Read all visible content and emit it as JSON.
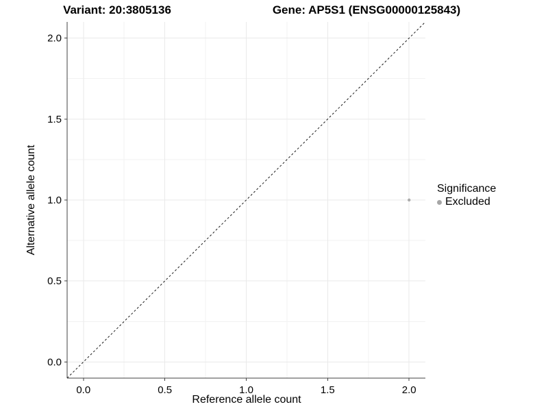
{
  "chart_data": {
    "type": "scatter",
    "title_left": "Variant: 20:3805136",
    "title_right": "Gene: AP5S1 (ENSG00000125843)",
    "xlabel": "Reference allele count",
    "ylabel": "Alternative allele count",
    "xlim": [
      -0.1,
      2.1
    ],
    "ylim": [
      -0.1,
      2.1
    ],
    "x_ticks": {
      "values": [
        0,
        0.5,
        1,
        1.5,
        2
      ],
      "labels": [
        "0.0",
        "0.5",
        "1.0",
        "1.5",
        "2.0"
      ]
    },
    "y_ticks": {
      "values": [
        0,
        0.5,
        1,
        1.5,
        2
      ],
      "labels": [
        "0.0",
        "0.5",
        "1.0",
        "1.5",
        "2.0"
      ]
    },
    "grid": "major and minor, light gray on white panel",
    "points": [
      {
        "x": 2,
        "y": 1,
        "series": "Excluded"
      }
    ],
    "reference_line": {
      "type": "identity",
      "slope": 1,
      "intercept": 0,
      "style": "dashed"
    },
    "legend": {
      "title": "Significance",
      "position": "right",
      "entries": [
        {
          "label": "Excluded",
          "color": "#a6a6a6"
        }
      ]
    }
  },
  "colors": {
    "background": "#ffffff",
    "point": "#ababab",
    "legend_dot": "#a6a6a6",
    "grid_major": "#e9e9e9",
    "grid_minor": "#f2f2f2",
    "axis_line": "#404040",
    "abline": "#1a1a1a",
    "text": "#000000"
  }
}
